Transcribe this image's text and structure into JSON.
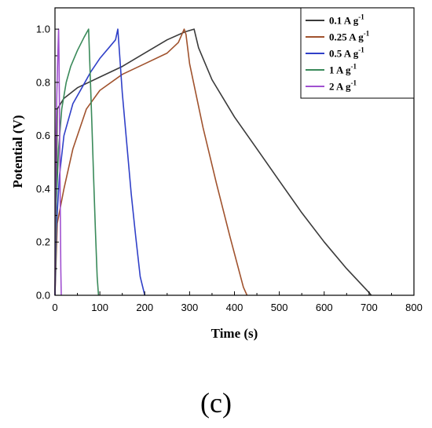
{
  "chart_data": {
    "type": "line",
    "title": "",
    "xlabel": "Time (s)",
    "ylabel": "Potential (V)",
    "xlim": [
      0,
      800
    ],
    "ylim": [
      0,
      1.08
    ],
    "xticks": [
      0,
      100,
      200,
      300,
      400,
      500,
      600,
      700,
      800
    ],
    "yticks": [
      0.0,
      0.2,
      0.4,
      0.6,
      0.8,
      1.0
    ],
    "xtick_labels": [
      "0",
      "100",
      "200",
      "300",
      "400",
      "500",
      "600",
      "700",
      "800"
    ],
    "ytick_labels": [
      "0.0",
      "0.2",
      "0.4",
      "0.6",
      "0.8",
      "1.0"
    ],
    "grid": false,
    "legend_placement": "top-right",
    "series": [
      {
        "name": "0.1 A g",
        "unit_sup": "-1",
        "color": "#3a3a3a",
        "x": [
          0,
          5,
          20,
          50,
          100,
          150,
          200,
          250,
          290,
          310,
          320,
          350,
          400,
          450,
          500,
          550,
          600,
          650,
          700,
          705
        ],
        "y": [
          0.0,
          0.7,
          0.74,
          0.78,
          0.82,
          0.86,
          0.91,
          0.96,
          0.99,
          1.0,
          0.93,
          0.81,
          0.67,
          0.55,
          0.43,
          0.31,
          0.2,
          0.1,
          0.01,
          0.0
        ]
      },
      {
        "name": "0.25 A g",
        "unit_sup": "-1",
        "color": "#a0522d",
        "x": [
          0,
          5,
          20,
          40,
          70,
          100,
          150,
          200,
          250,
          275,
          288,
          292,
          300,
          330,
          360,
          390,
          420,
          428
        ],
        "y": [
          0.0,
          0.27,
          0.4,
          0.55,
          0.7,
          0.77,
          0.83,
          0.87,
          0.91,
          0.95,
          1.0,
          0.98,
          0.87,
          0.63,
          0.42,
          0.22,
          0.03,
          0.0
        ]
      },
      {
        "name": "0.5 A g",
        "unit_sup": "-1",
        "color": "#3040c8",
        "x": [
          0,
          3,
          10,
          20,
          40,
          60,
          80,
          100,
          120,
          135,
          140,
          143,
          150,
          160,
          170,
          180,
          190,
          200
        ],
        "y": [
          0.0,
          0.25,
          0.45,
          0.6,
          0.72,
          0.78,
          0.84,
          0.89,
          0.93,
          0.96,
          1.0,
          0.93,
          0.76,
          0.57,
          0.38,
          0.22,
          0.07,
          0.0
        ]
      },
      {
        "name": "1 A g",
        "unit_sup": "-1",
        "color": "#3a8a5a",
        "x": [
          0,
          3,
          8,
          15,
          25,
          35,
          50,
          65,
          75,
          78,
          82,
          86,
          90,
          94,
          97
        ],
        "y": [
          0.0,
          0.35,
          0.55,
          0.7,
          0.8,
          0.86,
          0.92,
          0.97,
          1.0,
          0.85,
          0.66,
          0.45,
          0.25,
          0.07,
          0.0
        ]
      },
      {
        "name": "2 A g",
        "unit_sup": "-1",
        "color": "#a050d0",
        "x": [
          0,
          1,
          2,
          4,
          6,
          8,
          9,
          10,
          11,
          12,
          13,
          14
        ],
        "y": [
          0.0,
          0.35,
          0.55,
          0.75,
          0.88,
          1.0,
          0.9,
          0.7,
          0.48,
          0.28,
          0.1,
          0.0
        ]
      }
    ]
  },
  "panel_label": "(c)"
}
